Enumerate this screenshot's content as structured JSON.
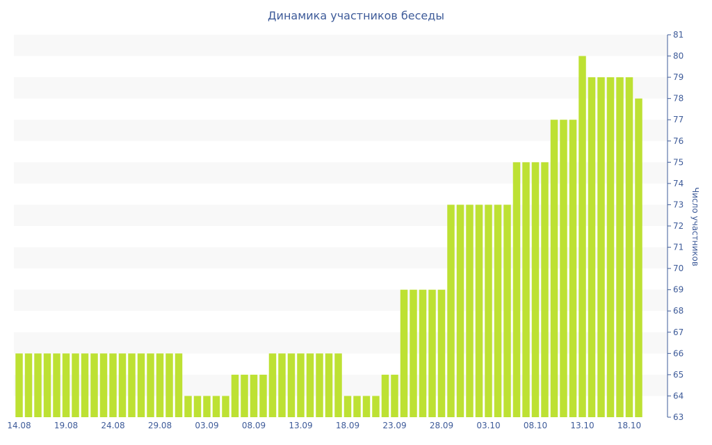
{
  "chart_data": {
    "type": "bar",
    "title": "Динамика участников беседы",
    "ylabel": "Число участников",
    "xlabel": "",
    "ylim": [
      63,
      81
    ],
    "yticks": [
      63,
      64,
      65,
      66,
      67,
      68,
      69,
      70,
      71,
      72,
      73,
      74,
      75,
      76,
      77,
      78,
      79,
      80,
      81
    ],
    "y_axis_position": "right",
    "grid": "alternating-horizontal-bands",
    "bar_color": "#bde133",
    "text_color": "#3e5b99",
    "x_tick_labels": [
      "14.08",
      "19.08",
      "24.08",
      "29.08",
      "03.09",
      "08.09",
      "13.09",
      "18.09",
      "23.09",
      "28.09",
      "03.10",
      "08.10",
      "13.10",
      "18.10"
    ],
    "x_tick_every": 5,
    "values": [
      66,
      66,
      66,
      66,
      66,
      66,
      66,
      66,
      66,
      66,
      66,
      66,
      66,
      66,
      66,
      66,
      66,
      66,
      64,
      64,
      64,
      64,
      64,
      65,
      65,
      65,
      65,
      66,
      66,
      66,
      66,
      66,
      66,
      66,
      66,
      64,
      64,
      64,
      64,
      65,
      65,
      69,
      69,
      69,
      69,
      69,
      73,
      73,
      73,
      73,
      73,
      73,
      73,
      75,
      75,
      75,
      75,
      77,
      77,
      77,
      80,
      79,
      79,
      79,
      79,
      79,
      78
    ]
  }
}
